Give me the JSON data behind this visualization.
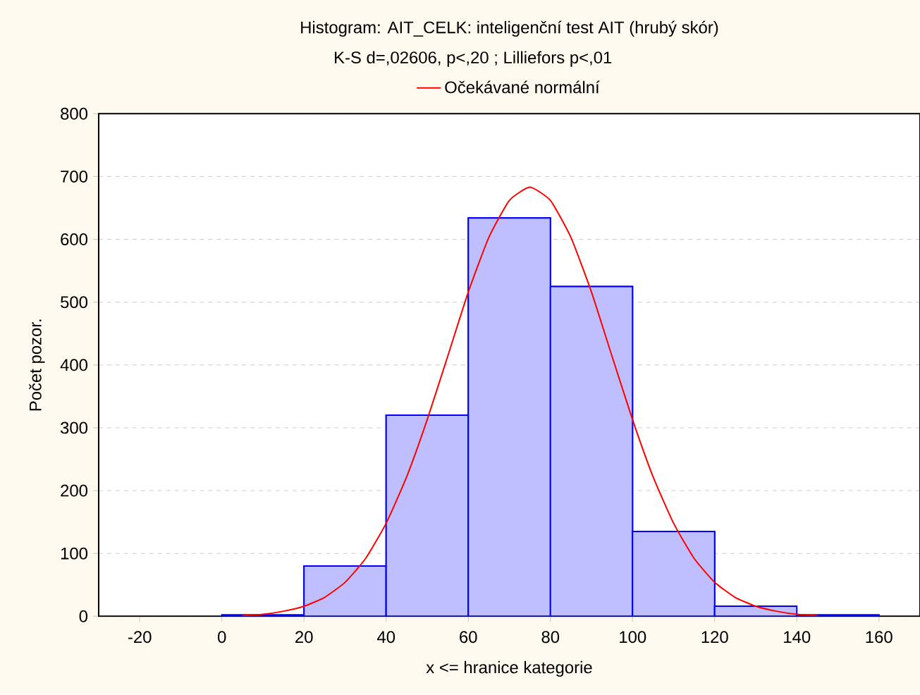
{
  "chart_data": {
    "type": "histogram",
    "title": "Histogram: AIT_CELK: inteligenční test AIT (hrubý skór)",
    "subtitle": "K-S d=,02606, p<,20 ; Lilliefors p<,01",
    "xlabel": "x <= hranice kategorie",
    "ylabel": "Počet pozor.",
    "bins": [
      0,
      20,
      40,
      60,
      80,
      100,
      120,
      140,
      160
    ],
    "series": [
      {
        "type": "histogram",
        "color": "#0000ff",
        "values": [
          2,
          80,
          320,
          634,
          525,
          135,
          16,
          2
        ]
      },
      {
        "type": "line",
        "name": "Očekávané normální",
        "color": "#ff0000",
        "x": [
          5,
          10,
          15,
          20,
          25,
          30,
          35,
          40,
          45,
          50,
          55,
          60,
          65,
          70,
          75,
          80,
          85,
          90,
          95,
          100,
          105,
          110,
          115,
          120,
          125,
          130,
          135,
          140,
          145
        ],
        "values": [
          1,
          3,
          8,
          16,
          30,
          54,
          92,
          148,
          222,
          313,
          414,
          516,
          603,
          662,
          683,
          662,
          603,
          516,
          414,
          313,
          222,
          148,
          92,
          54,
          30,
          16,
          8,
          3,
          1
        ]
      }
    ],
    "xlim": [
      -30,
      170
    ],
    "xticks": [
      -20,
      0,
      20,
      40,
      60,
      80,
      100,
      120,
      140,
      160
    ],
    "ylim": [
      0,
      800
    ],
    "yticks": [
      0,
      100,
      200,
      300,
      400,
      500,
      600,
      700,
      800
    ],
    "grid": "y",
    "legend": "top"
  }
}
